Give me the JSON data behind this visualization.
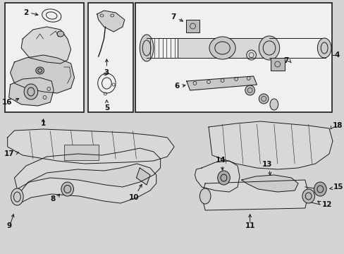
{
  "bg_color": "#d4d4d4",
  "box_bg": "#f0f0f0",
  "line_color": "#1a1a1a",
  "text_color": "#111111",
  "fig_w": 4.89,
  "fig_h": 3.6,
  "dpi": 100
}
